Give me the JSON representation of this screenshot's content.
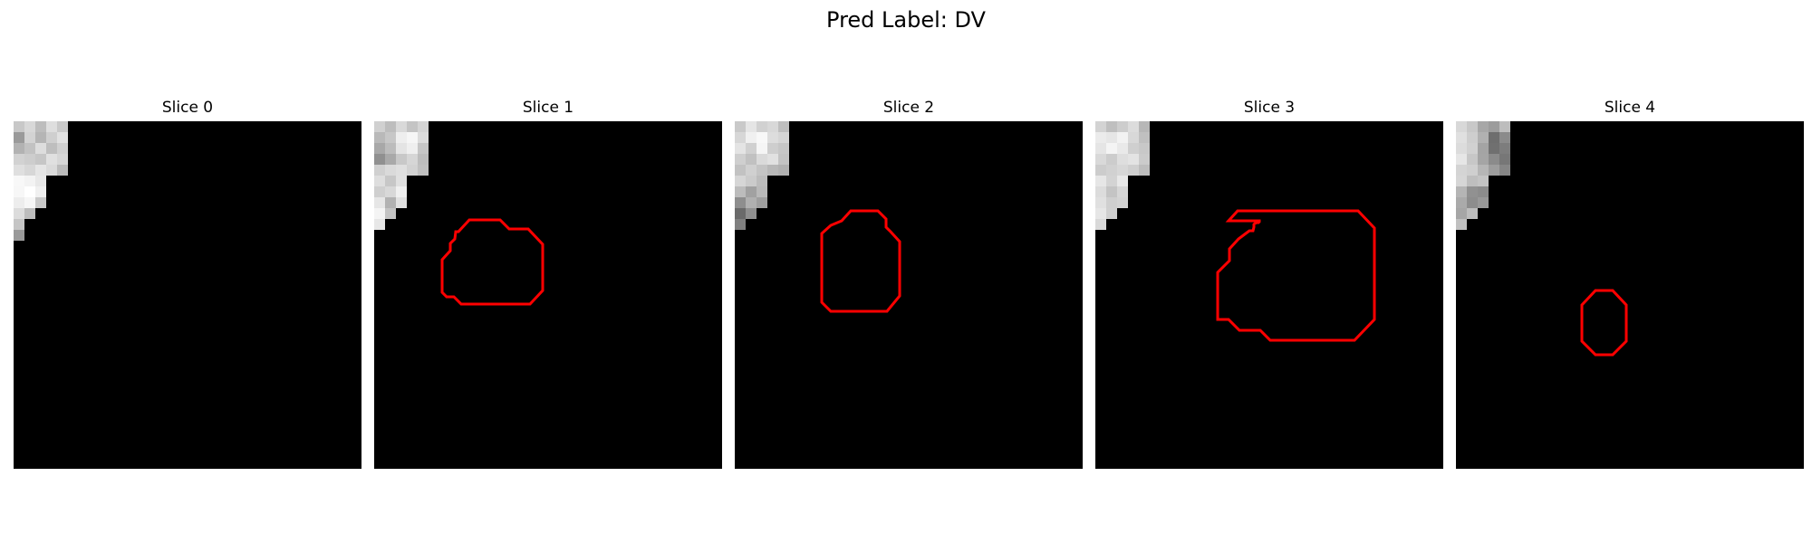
{
  "figure": {
    "title": "Pred Label: DV"
  },
  "panels": [
    {
      "title": "Slice 0",
      "contour_color": "#ff0000",
      "has_contour": false
    },
    {
      "title": "Slice 1",
      "contour_color": "#ff0000",
      "has_contour": true
    },
    {
      "title": "Slice 2",
      "contour_color": "#ff0000",
      "has_contour": true
    },
    {
      "title": "Slice 3",
      "contour_color": "#ff0000",
      "has_contour": true
    },
    {
      "title": "Slice 4",
      "contour_color": "#ff0000",
      "has_contour": true
    }
  ]
}
